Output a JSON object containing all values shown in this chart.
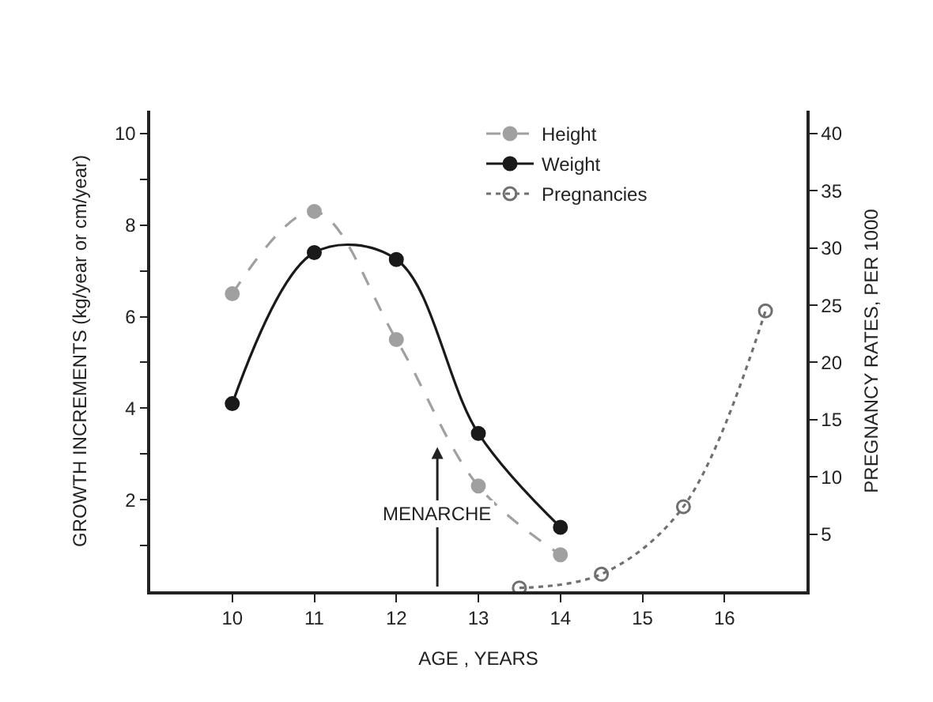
{
  "chart_data": {
    "type": "line",
    "xlabel": "AGE , YEARS",
    "ylabel": "GROWTH INCREMENTS (kg/year or cm/year)",
    "y2label": "PREGNANCY RATES, PER 1000",
    "x": [
      10,
      11,
      12,
      13,
      14
    ],
    "series": [
      {
        "name": "Height",
        "color": "#a0a0a0",
        "line_style": "dashed",
        "marker": "circle",
        "values": [
          6.5,
          8.3,
          5.5,
          2.3,
          0.8
        ]
      },
      {
        "name": "Weight",
        "color": "#1a1a1a",
        "line_style": "solid",
        "marker": "circle",
        "values": [
          4.1,
          7.4,
          7.25,
          3.45,
          1.4
        ]
      },
      {
        "name": "Pregnancies",
        "color": "#707070",
        "line_style": "dotted",
        "marker": "circle-open",
        "axis": "y2",
        "x": [
          13.5,
          14.5,
          15.5,
          16.5
        ],
        "values": [
          0.3,
          1.5,
          7.4,
          24.5
        ]
      }
    ],
    "xlim": [
      9,
      17
    ],
    "xticks": [
      10,
      11,
      12,
      13,
      14,
      15,
      16
    ],
    "ylim": [
      0,
      10.5
    ],
    "yticks": [
      {
        "value": 1,
        "label": null
      },
      2,
      {
        "value": 3,
        "label": null
      },
      4,
      {
        "value": 5,
        "label": null
      },
      6,
      {
        "value": 7,
        "label": null
      },
      8,
      {
        "value": 9,
        "label": null
      },
      10
    ],
    "y2lim": [
      0,
      42
    ],
    "y2ticks": [
      5,
      10,
      15,
      20,
      25,
      30,
      35,
      40
    ],
    "annotations": [
      "MENARCHE"
    ],
    "legend": "top right"
  }
}
